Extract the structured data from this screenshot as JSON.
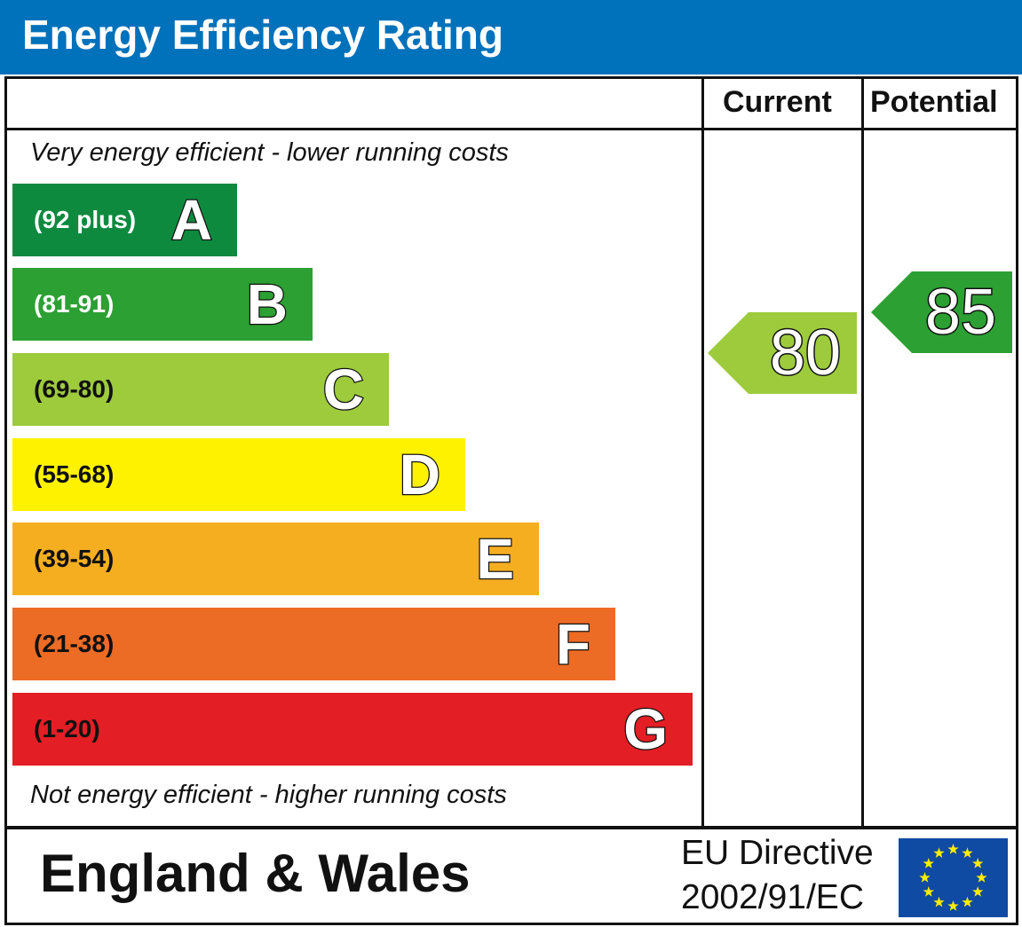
{
  "title": "Energy Efficiency Rating",
  "columns": {
    "current": "Current",
    "potential": "Potential"
  },
  "top_note": "Very energy efficient - lower running costs",
  "bottom_note": "Not energy efficient - higher running costs",
  "region": "England & Wales",
  "directive": {
    "line1": "EU Directive",
    "line2": "2002/91/EC"
  },
  "colors": {
    "header": "#0071bb",
    "flag": "#0f4aa3",
    "stars": "#ffed00"
  },
  "chart_data": {
    "type": "bar",
    "categories": [
      "A",
      "B",
      "C",
      "D",
      "E",
      "F",
      "G"
    ],
    "bands": [
      {
        "letter": "A",
        "range": "(92 plus)",
        "color": "#0e8a3f",
        "text": "#ffffff"
      },
      {
        "letter": "B",
        "range": "(81-91)",
        "color": "#2ca033",
        "text": "#ffffff"
      },
      {
        "letter": "C",
        "range": "(69-80)",
        "color": "#9dcb3c",
        "text": "#111111"
      },
      {
        "letter": "D",
        "range": "(55-68)",
        "color": "#fff200",
        "text": "#111111"
      },
      {
        "letter": "E",
        "range": "(39-54)",
        "color": "#f6ae21",
        "text": "#111111"
      },
      {
        "letter": "F",
        "range": "(21-38)",
        "color": "#ec6b25",
        "text": "#111111"
      },
      {
        "letter": "G",
        "range": "(1-20)",
        "color": "#e31e25",
        "text": "#111111"
      }
    ],
    "current": {
      "value": 80,
      "band": "C",
      "color": "#9dcb3c"
    },
    "potential": {
      "value": 85,
      "band": "B",
      "color": "#2ca033"
    }
  }
}
